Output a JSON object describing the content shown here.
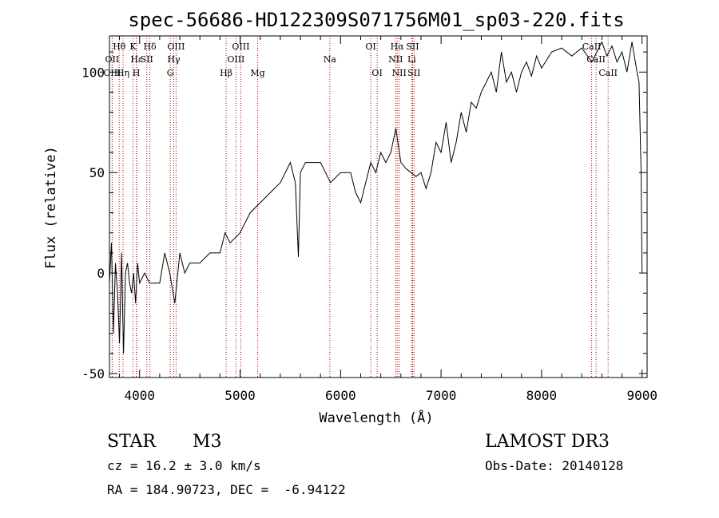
{
  "chart_data": {
    "type": "line",
    "title": "spec-56686-HD122309S071756M01_sp03-220.fits",
    "xlabel": "Wavelength (Å)",
    "ylabel": "Flux (relative)",
    "xlim": [
      3700,
      9050
    ],
    "ylim": [
      -52,
      118
    ],
    "xticks": [
      4000,
      5000,
      6000,
      7000,
      8000,
      9000
    ],
    "yticks": [
      -50,
      0,
      50,
      100
    ],
    "series": [
      {
        "name": "spectrum",
        "x": [
          3700,
          3720,
          3740,
          3760,
          3780,
          3800,
          3820,
          3840,
          3860,
          3880,
          3900,
          3920,
          3940,
          3960,
          3980,
          4000,
          4050,
          4100,
          4150,
          4200,
          4250,
          4300,
          4350,
          4400,
          4450,
          4500,
          4600,
          4700,
          4800,
          4850,
          4900,
          5000,
          5100,
          5200,
          5300,
          5400,
          5500,
          5550,
          5580,
          5600,
          5650,
          5700,
          5800,
          5900,
          6000,
          6100,
          6150,
          6200,
          6250,
          6300,
          6350,
          6400,
          6450,
          6500,
          6550,
          6600,
          6650,
          6700,
          6750,
          6800,
          6850,
          6900,
          6950,
          7000,
          7050,
          7100,
          7150,
          7200,
          7250,
          7300,
          7350,
          7400,
          7450,
          7500,
          7550,
          7600,
          7650,
          7700,
          7750,
          7800,
          7850,
          7900,
          7950,
          8000,
          8100,
          8200,
          8300,
          8400,
          8500,
          8550,
          8600,
          8650,
          8700,
          8750,
          8800,
          8850,
          8900,
          8950,
          8970,
          8990,
          9000
        ],
        "y": [
          -5,
          15,
          -30,
          5,
          -10,
          -35,
          10,
          -40,
          0,
          5,
          -5,
          -10,
          0,
          -15,
          5,
          -5,
          0,
          -5,
          -5,
          -5,
          10,
          0,
          -15,
          10,
          0,
          5,
          5,
          10,
          10,
          20,
          15,
          20,
          30,
          35,
          40,
          45,
          55,
          45,
          8,
          50,
          55,
          55,
          55,
          45,
          50,
          50,
          40,
          35,
          45,
          55,
          50,
          60,
          55,
          60,
          72,
          55,
          52,
          50,
          48,
          50,
          42,
          50,
          65,
          60,
          75,
          55,
          65,
          80,
          70,
          85,
          82,
          90,
          95,
          100,
          90,
          110,
          95,
          100,
          90,
          100,
          105,
          98,
          108,
          102,
          110,
          112,
          108,
          112,
          105,
          110,
          115,
          108,
          113,
          105,
          110,
          100,
          115,
          100,
          95,
          50,
          0
        ]
      }
    ],
    "line_markers": [
      {
        "label": "Hθ",
        "wavelength": 3797,
        "row": 1
      },
      {
        "label": "OII",
        "wavelength": 3727,
        "row": 2
      },
      {
        "label": "OIII",
        "wavelength": 3727,
        "row": 3
      },
      {
        "label": "Hη",
        "wavelength": 3835,
        "row": 3
      },
      {
        "label": "Hε",
        "wavelength": 3970,
        "row": 2
      },
      {
        "label": "K",
        "wavelength": 3934,
        "row": 1
      },
      {
        "label": "H",
        "wavelength": 3968,
        "row": 3
      },
      {
        "label": "Hδ",
        "wavelength": 4102,
        "row": 1
      },
      {
        "label": "SII",
        "wavelength": 4072,
        "row": 2
      },
      {
        "label": "OIII",
        "wavelength": 4363,
        "row": 1
      },
      {
        "label": "Hγ",
        "wavelength": 4340,
        "row": 2
      },
      {
        "label": "G",
        "wavelength": 4305,
        "row": 3
      },
      {
        "label": "OIII",
        "wavelength": 5007,
        "row": 1
      },
      {
        "label": "OIII",
        "wavelength": 4959,
        "row": 2
      },
      {
        "label": "Hβ",
        "wavelength": 4861,
        "row": 3
      },
      {
        "label": "Mg",
        "wavelength": 5175,
        "row": 3
      },
      {
        "label": "Na",
        "wavelength": 5893,
        "row": 2
      },
      {
        "label": "OI",
        "wavelength": 6300,
        "row": 1
      },
      {
        "label": "OI",
        "wavelength": 6364,
        "row": 3
      },
      {
        "label": "Hα",
        "wavelength": 6563,
        "row": 1
      },
      {
        "label": "SII",
        "wavelength": 6717,
        "row": 1
      },
      {
        "label": "NII",
        "wavelength": 6548,
        "row": 2
      },
      {
        "label": "Li",
        "wavelength": 6708,
        "row": 2
      },
      {
        "label": "NII",
        "wavelength": 6583,
        "row": 3
      },
      {
        "label": "SII",
        "wavelength": 6731,
        "row": 3
      },
      {
        "label": "CaII",
        "wavelength": 8498,
        "row": 1
      },
      {
        "label": "CaII",
        "wavelength": 8542,
        "row": 2
      },
      {
        "label": "CaII",
        "wavelength": 8662,
        "row": 3
      }
    ]
  },
  "info": {
    "class_text": "STAR",
    "subclass_text": "M3",
    "redshift_text": "cz = 16.2 ± 3.0 km/s",
    "coords_text": "RA = 184.90723, DEC =  -6.94122",
    "survey_text": "LAMOST DR3",
    "obs_date_text": "Obs-Date: 20140128"
  }
}
